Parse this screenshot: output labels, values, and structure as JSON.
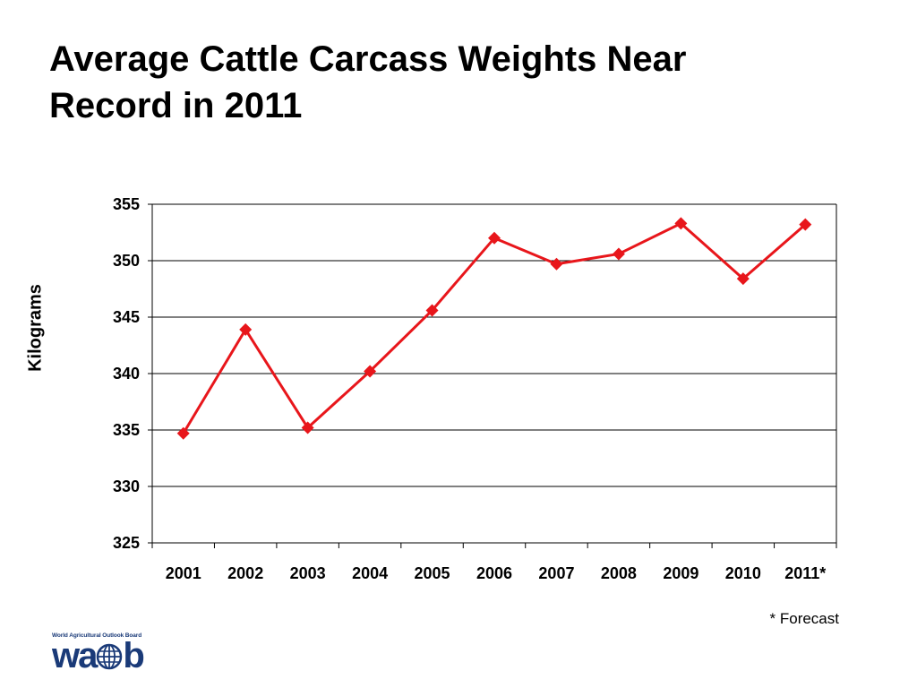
{
  "slide": {
    "title_lines": [
      "Average Cattle Carcass Weights Near",
      "Record in 2011"
    ],
    "footnote": "* Forecast"
  },
  "logo": {
    "caption": "World Agricultural Outlook Board",
    "wordmark_left": "wa",
    "wordmark_right": "b",
    "icon": "globe-icon",
    "color": "#1a3a78"
  },
  "chart_data": {
    "type": "line",
    "title": "",
    "xlabel": "",
    "ylabel": "Kilograms",
    "categories": [
      "2001",
      "2002",
      "2003",
      "2004",
      "2005",
      "2006",
      "2007",
      "2008",
      "2009",
      "2010",
      "2011*"
    ],
    "series": [
      {
        "color": "#e8161b",
        "marker": "diamond",
        "values": [
          334.7,
          343.9,
          335.2,
          340.2,
          345.6,
          352.0,
          349.7,
          350.6,
          353.3,
          348.4,
          353.2
        ]
      }
    ],
    "ylim": [
      325,
      355
    ],
    "yticks": [
      325,
      330,
      335,
      340,
      345,
      350,
      355
    ],
    "grid": "horizontal"
  }
}
